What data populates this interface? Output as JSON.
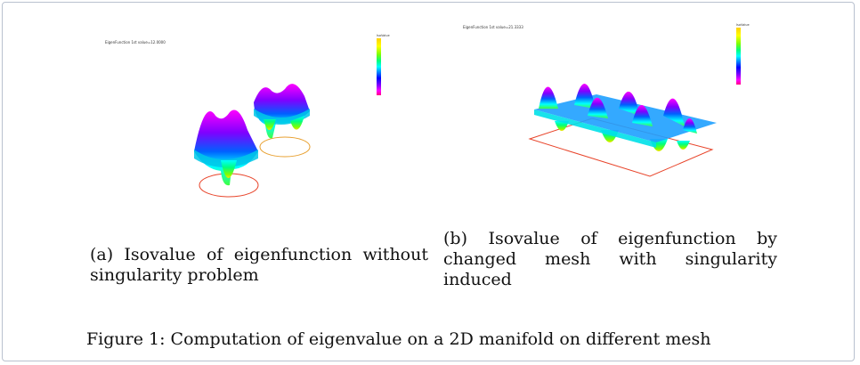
{
  "panel_a": {
    "plot_title": "EigenFunction 1st value=12.0000",
    "legend_title": "IsoValue",
    "legend_values": [
      "",
      "",
      "",
      "",
      "",
      "",
      "",
      "",
      "",
      "",
      "",
      "",
      "",
      "",
      "",
      "",
      "",
      "",
      ""
    ],
    "caption": "(a) Isovalue of eigenfunction without singularity problem"
  },
  "panel_b": {
    "plot_title": "EigenFunction 1st value=21.3333",
    "legend_title": "IsoValue",
    "legend_values": [
      "",
      "",
      "",
      "",
      "",
      "",
      "",
      "",
      "",
      "",
      "",
      "",
      "",
      "",
      "",
      "",
      "",
      "",
      ""
    ],
    "caption": "(b) Isovalue of eigenfunction by changed mesh with singularity induced"
  },
  "figure_caption": "Figure 1: Computation of eigenvalue on a 2D manifold on different mesh",
  "colors": {
    "border": "#b9c1cf",
    "mesh_outline": "#e8442a",
    "colormap": [
      "#ffd000",
      "#ffff00",
      "#80ff00",
      "#00ff80",
      "#00ffff",
      "#0080ff",
      "#0000ff",
      "#8000ff",
      "#ff00ff",
      "#ff0080"
    ]
  }
}
